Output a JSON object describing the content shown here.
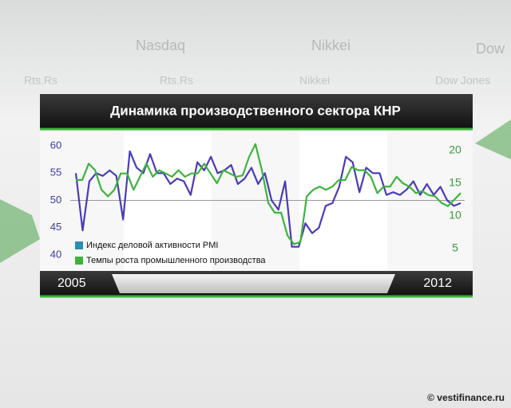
{
  "chart_data": {
    "type": "line",
    "title": "Динамика производственного сектора КНР",
    "x_start_label": "2005",
    "x_end_label": "2012",
    "ylim": [
      40,
      60
    ],
    "yticks": [
      40,
      45,
      50,
      55,
      60
    ],
    "y2lim": [
      5,
      20
    ],
    "y2ticks": [
      5,
      10,
      15,
      20
    ],
    "reference_line": 50,
    "series": [
      {
        "name": "Индекс деловой активности PMI",
        "color": "#4a3cb4",
        "legend_color": "#2a8db4",
        "values": [
          55,
          44.5,
          53.5,
          55,
          54.5,
          55.5,
          54.5,
          46.5,
          59,
          56,
          55,
          58.5,
          55,
          55,
          53,
          54,
          53.5,
          51,
          57,
          55.5,
          58,
          55,
          55.5,
          56.5,
          53,
          54,
          56,
          53,
          55,
          50,
          48.3,
          53.5,
          41.5,
          41.5,
          45.8,
          44,
          45,
          49,
          49.5,
          52.5,
          58,
          57,
          51.5,
          56,
          55,
          55,
          51,
          51.5,
          51,
          52,
          53.5,
          51,
          53,
          51,
          52.5,
          50,
          49,
          49.5
        ]
      },
      {
        "name": "Темпы роста промышленного производства",
        "color": "#3cb43c",
        "legend_color": "#3cb43c",
        "axis": "y2",
        "values": [
          15.5,
          15.5,
          18,
          17,
          14,
          13,
          14,
          16.5,
          16.5,
          14,
          16,
          18,
          16,
          17,
          16.5,
          16,
          17,
          16,
          16.5,
          16.5,
          18,
          16.5,
          15,
          17,
          16.5,
          16,
          16.2,
          19,
          21,
          17,
          12,
          10.5,
          10.5,
          7,
          5.7,
          6,
          13,
          14,
          14.5,
          14,
          14.5,
          15.5,
          15.5,
          17.5,
          17,
          17,
          16,
          13.5,
          14.5,
          14.5,
          16,
          15,
          14.5,
          13.5,
          13.8,
          13.2,
          13,
          12,
          11.5,
          12.5,
          13.5
        ]
      }
    ]
  },
  "background": {
    "tickers": [
      "Nasdaq",
      "Nikkei",
      "Dow",
      "Rts.Rs",
      "Rts.Rs",
      "Nikkei",
      "Dow Jones"
    ],
    "watermark": "© vestifinance.ru"
  }
}
